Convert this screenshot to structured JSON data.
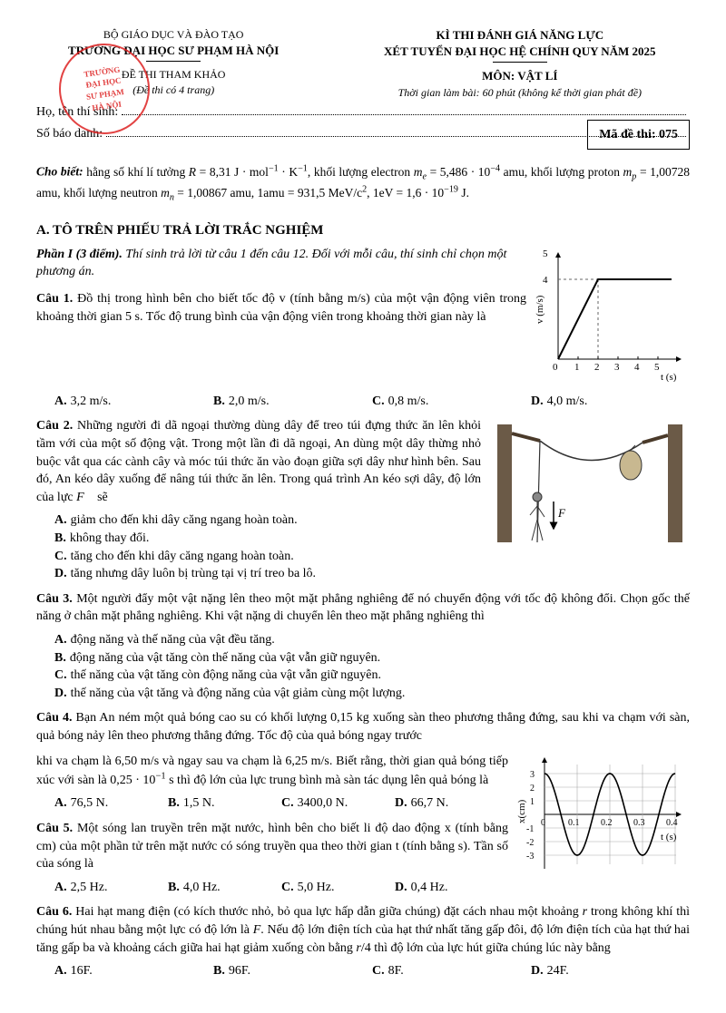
{
  "header": {
    "ministry": "BỘ GIÁO DỤC VÀ ĐÀO TẠO",
    "school": "TRƯỜNG ĐẠI HỌC SƯ PHẠM HÀ NỘI",
    "exam_ref": "ĐỀ THI THAM KHẢO",
    "pages_note": "(Đề thi có 4 trang)",
    "exam_title1": "KÌ THI ĐÁNH GIÁ NĂNG LỰC",
    "exam_title2": "XÉT TUYỂN ĐẠI HỌC HỆ CHÍNH QUY NĂM 2025",
    "subject": "MÔN: VẬT LÍ",
    "duration": "Thời gian làm bài: 60 phút (không kể thời gian phát đề)",
    "name_label": "Họ, tên thí sinh:",
    "id_label": "Số báo danh:",
    "exam_code_label": "Mã đề thi: 075"
  },
  "stamp": {
    "l1": "TRƯỜNG",
    "l2": "ĐẠI HỌC",
    "l3": "SƯ PHẠM",
    "l4": "HÀ NỘI"
  },
  "constants_text": "Cho biết: hằng số khí lí tưởng R = 8,31 J · mol⁻¹ · K⁻¹, khối lượng electron mₑ = 5,486 · 10⁻⁴ amu, khối lượng proton mₚ = 1,00728 amu, khối lượng neutron mₙ = 1,00867 amu, 1amu = 931,5 MeV/c², 1eV = 1,6 · 10⁻¹⁹ J.",
  "section_a": "A. TÔ TRÊN PHIẾU TRẢ LỜI TRẮC NGHIỆM",
  "part1": {
    "label": "Phần I (3 điểm).",
    "instr": "Thí sinh trả lời từ câu 1 đến câu 12. Đối với mỗi câu, thí sinh chỉ chọn một phương án."
  },
  "q1": {
    "num": "Câu 1.",
    "text": "Đồ thị trong hình bên cho biết tốc độ v (tính bằng m/s) của một vận động viên trong khoảng thời gian 5 s. Tốc độ trung bình của vận động viên trong khoảng thời gian này là",
    "opts": {
      "A": "3,2 m/s.",
      "B": "2,0 m/s.",
      "C": "0,8 m/s.",
      "D": "4,0 m/s."
    },
    "chart": {
      "type": "line",
      "xlabel": "t (s)",
      "ylabel": "v (m/s)",
      "xlim": [
        0,
        5
      ],
      "ylim": [
        0,
        5
      ],
      "xticks": [
        0,
        1,
        2,
        3,
        4,
        5
      ],
      "yticks_major": [
        4
      ],
      "series": {
        "x": [
          0,
          2,
          5
        ],
        "y": [
          0,
          4,
          4
        ]
      },
      "line_color": "#000",
      "grid_color": "#666",
      "dash_y": 4
    }
  },
  "q2": {
    "num": "Câu 2.",
    "text": "Những người đi dã ngoại thường dùng dây để treo túi đựng thức ăn lên khỏi tầm với của một số động vật. Trong một lần đi dã ngoại, An dùng một dây thừng nhỏ buộc vắt qua các cành cây và móc túi thức ăn vào đoạn giữa sợi dây như hình bên. Sau đó, An kéo dây xuống để nâng túi thức ăn lên. Trong quá trình An kéo sợi dây, độ lớn của lực F⃗ sẽ",
    "opts": {
      "A": "giảm cho đến khi dây căng ngang hoàn toàn.",
      "B": "không thay đổi.",
      "C": "tăng cho đến khi dây căng ngang hoàn toàn.",
      "D": "tăng nhưng dây luôn bị trùng tại vị trí treo ba lô."
    },
    "fig": {
      "type": "illustration",
      "tree_color": "#5a4a3a",
      "rope_color": "#333",
      "bag_color": "#c8b890",
      "arrow_color": "#000",
      "arrow_label": "F⃗"
    }
  },
  "q3": {
    "num": "Câu 3.",
    "text": "Một người đẩy một vật nặng lên theo một mặt phẳng nghiêng để nó chuyển động với tốc độ không đổi. Chọn gốc thế năng ở chân mặt phẳng nghiêng. Khi vật nặng di chuyển lên theo mặt phẳng nghiêng thì",
    "opts": {
      "A": "động năng và thế năng của vật đều tăng.",
      "B": "động năng của vật tăng còn thế năng của vật vẫn giữ nguyên.",
      "C": "thế năng của vật tăng còn động năng của vật vẫn giữ nguyên.",
      "D": "thế năng của vật tăng và động năng của vật giảm cùng một lượng."
    }
  },
  "q4": {
    "num": "Câu 4.",
    "text": "Bạn An ném một quả bóng cao su có khối lượng 0,15 kg xuống sàn theo phương thẳng đứng, sau khi va chạm với sàn, quả bóng nảy lên theo phương thẳng đứng. Tốc độ của quả bóng ngay trước khi va chạm là 6,50 m/s và ngay sau va chạm là 6,25 m/s. Biết rằng, thời gian quả bóng tiếp xúc với sàn là 0,25 · 10⁻¹ s thì độ lớn của lực trung bình mà sàn tác dụng lên quả bóng là",
    "opts": {
      "A": "76,5 N.",
      "B": "1,5 N.",
      "C": "3400,0 N.",
      "D": "66,7 N."
    }
  },
  "q5": {
    "num": "Câu 5.",
    "text": "Một sóng lan truyền trên mặt nước, hình bên cho biết li độ dao động x (tính bằng cm) của một phần tử trên mặt nước có sóng truyền qua theo thời gian t (tính bằng s). Tần số của sóng là",
    "opts": {
      "A": "2,5 Hz.",
      "B": "4,0 Hz.",
      "C": "5,0 Hz.",
      "D": "0,4 Hz."
    },
    "chart": {
      "type": "sine",
      "xlabel": "t (s)",
      "ylabel": "x(cm)",
      "xlim": [
        0,
        0.4
      ],
      "ylim": [
        -4,
        4
      ],
      "xticks": [
        0,
        0.1,
        0.2,
        0.3,
        0.4
      ],
      "yticks": [
        -3,
        -2,
        -1,
        1,
        2,
        3
      ],
      "amplitude": 3,
      "period": 0.2,
      "phase_shift_s": 0,
      "line_color": "#000",
      "grid_color": "#888",
      "line_width": 1.6
    }
  },
  "q6": {
    "num": "Câu 6.",
    "text": "Hai hạt mang điện (có kích thước nhỏ, bỏ qua lực hấp dẫn giữa chúng) đặt cách nhau một khoảng r trong không khí thì chúng hút nhau bằng một lực có độ lớn là F. Nếu độ lớn điện tích của hạt thứ nhất tăng gấp đôi, độ lớn điện tích của hạt thứ hai tăng gấp ba và khoảng cách giữa hai hạt giảm xuống còn bằng r/4 thì độ lớn của lực hút giữa chúng lúc này bằng",
    "opts": {
      "A": "16F.",
      "B": "96F.",
      "C": "8F.",
      "D": "24F."
    }
  }
}
